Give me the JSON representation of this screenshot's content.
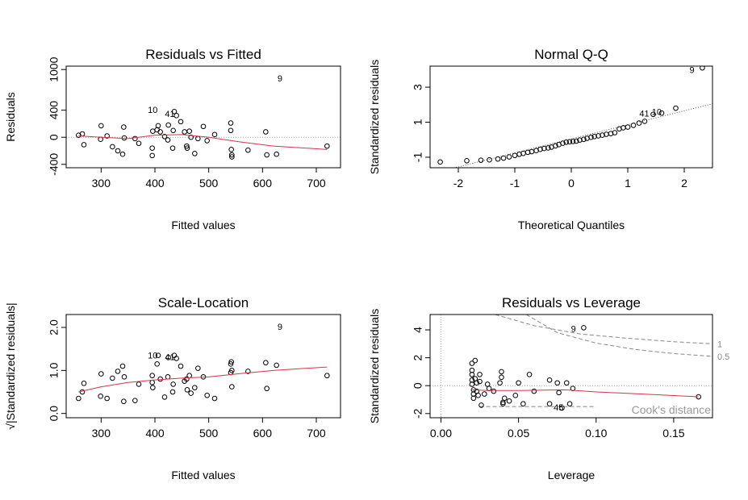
{
  "chart_data": [
    {
      "type": "scatter",
      "title": "Residuals vs Fitted",
      "xlabel": "Fitted values",
      "ylabel": "Residuals",
      "xlim": [
        235,
        745
      ],
      "ylim": [
        -450,
        1050
      ],
      "xticks": [
        300,
        400,
        500,
        600,
        700
      ],
      "yticks": [
        -400,
        0,
        400,
        1000
      ],
      "ytick_labels": [
        "-400",
        "0",
        "400",
        "1000"
      ],
      "points": [
        [
          258,
          30
        ],
        [
          265,
          50
        ],
        [
          268,
          -110
        ],
        [
          299,
          -30
        ],
        [
          300,
          170
        ],
        [
          311,
          20
        ],
        [
          321,
          -140
        ],
        [
          331,
          -200
        ],
        [
          340,
          -250
        ],
        [
          342,
          150
        ],
        [
          343,
          -10
        ],
        [
          363,
          -20
        ],
        [
          370,
          -90
        ],
        [
          395,
          -160
        ],
        [
          395,
          -270
        ],
        [
          396,
          90
        ],
        [
          404,
          110
        ],
        [
          406,
          170
        ],
        [
          410,
          80
        ],
        [
          418,
          10
        ],
        [
          424,
          -40
        ],
        [
          425,
          180
        ],
        [
          433,
          -160
        ],
        [
          434,
          100
        ],
        [
          436,
          380
        ],
        [
          440,
          320
        ],
        [
          448,
          230
        ],
        [
          455,
          80
        ],
        [
          459,
          -130
        ],
        [
          460,
          -160
        ],
        [
          464,
          90
        ],
        [
          467,
          0
        ],
        [
          474,
          -240
        ],
        [
          480,
          -20
        ],
        [
          490,
          160
        ],
        [
          497,
          -50
        ],
        [
          511,
          40
        ],
        [
          541,
          210
        ],
        [
          541,
          100
        ],
        [
          542,
          -180
        ],
        [
          543,
          -260
        ],
        [
          543,
          -290
        ],
        [
          573,
          -190
        ],
        [
          606,
          80
        ],
        [
          608,
          -260
        ],
        [
          626,
          -250
        ],
        [
          720,
          -130
        ]
      ],
      "labels": [
        {
          "text": "9",
          "x": 637,
          "y": 870
        },
        {
          "text": "10",
          "x": 405,
          "y": 410
        },
        {
          "text": "41",
          "x": 437,
          "y": 350
        }
      ],
      "smooth": [
        [
          258,
          20
        ],
        [
          300,
          0
        ],
        [
          350,
          -20
        ],
        [
          400,
          30
        ],
        [
          450,
          40
        ],
        [
          500,
          0
        ],
        [
          560,
          -70
        ],
        [
          620,
          -130
        ],
        [
          720,
          -180
        ]
      ],
      "refline": 0
    },
    {
      "type": "scatter",
      "title": "Normal Q-Q",
      "xlabel": "Theoretical Quantiles",
      "ylabel": "Standardized residuals",
      "xlim": [
        -2.5,
        2.5
      ],
      "ylim": [
        -1.6,
        4.2
      ],
      "xticks": [
        -2,
        -1,
        0,
        1,
        2
      ],
      "yticks": [
        -1,
        1,
        3
      ],
      "ytick_labels": [
        "-1",
        "1",
        "3"
      ],
      "points": [
        [
          -2.32,
          -1.27
        ],
        [
          -1.85,
          -1.2
        ],
        [
          -1.6,
          -1.17
        ],
        [
          -1.45,
          -1.15
        ],
        [
          -1.3,
          -1.1
        ],
        [
          -1.2,
          -1.05
        ],
        [
          -1.1,
          -0.98
        ],
        [
          -1.0,
          -0.9
        ],
        [
          -0.92,
          -0.83
        ],
        [
          -0.85,
          -0.78
        ],
        [
          -0.77,
          -0.72
        ],
        [
          -0.7,
          -0.68
        ],
        [
          -0.62,
          -0.62
        ],
        [
          -0.55,
          -0.55
        ],
        [
          -0.48,
          -0.5
        ],
        [
          -0.41,
          -0.47
        ],
        [
          -0.35,
          -0.42
        ],
        [
          -0.28,
          -0.35
        ],
        [
          -0.22,
          -0.28
        ],
        [
          -0.15,
          -0.2
        ],
        [
          -0.09,
          -0.14
        ],
        [
          -0.03,
          -0.12
        ],
        [
          0.03,
          -0.1
        ],
        [
          0.09,
          -0.08
        ],
        [
          0.15,
          -0.02
        ],
        [
          0.22,
          0.02
        ],
        [
          0.28,
          0.08
        ],
        [
          0.35,
          0.14
        ],
        [
          0.41,
          0.18
        ],
        [
          0.48,
          0.22
        ],
        [
          0.55,
          0.26
        ],
        [
          0.62,
          0.31
        ],
        [
          0.7,
          0.35
        ],
        [
          0.77,
          0.4
        ],
        [
          0.85,
          0.62
        ],
        [
          0.92,
          0.68
        ],
        [
          1.0,
          0.72
        ],
        [
          1.1,
          0.82
        ],
        [
          1.2,
          0.95
        ],
        [
          1.3,
          1.05
        ],
        [
          1.45,
          1.45
        ],
        [
          1.6,
          1.52
        ],
        [
          1.85,
          1.8
        ],
        [
          2.32,
          4.1
        ]
      ],
      "labels": [
        {
          "text": "9",
          "x": 2.18,
          "y": 4.0
        },
        {
          "text": "41",
          "x": 1.38,
          "y": 1.5
        },
        {
          "text": "10",
          "x": 1.6,
          "y": 1.6
        }
      ],
      "qqline": [
        [
          -2.5,
          -1.95
        ],
        [
          2.5,
          2.05
        ]
      ]
    },
    {
      "type": "scatter",
      "title": "Scale-Location",
      "xlabel": "Fitted values",
      "ylabel": "√|Standardized residuals|",
      "xlim": [
        235,
        745
      ],
      "ylim": [
        -0.1,
        2.3
      ],
      "xticks": [
        300,
        400,
        500,
        600,
        700
      ],
      "yticks": [
        0.0,
        1.0,
        2.0
      ],
      "ytick_labels": [
        "0.0",
        "1.0",
        "2.0"
      ],
      "points": [
        [
          258,
          0.35
        ],
        [
          265,
          0.5
        ],
        [
          268,
          0.7
        ],
        [
          299,
          0.4
        ],
        [
          300,
          0.92
        ],
        [
          311,
          0.35
        ],
        [
          321,
          0.82
        ],
        [
          331,
          0.98
        ],
        [
          340,
          1.1
        ],
        [
          342,
          0.28
        ],
        [
          343,
          0.85
        ],
        [
          363,
          0.3
        ],
        [
          370,
          0.68
        ],
        [
          395,
          0.88
        ],
        [
          395,
          0.72
        ],
        [
          396,
          0.6
        ],
        [
          404,
          1.15
        ],
        [
          406,
          1.35
        ],
        [
          410,
          0.8
        ],
        [
          418,
          0.38
        ],
        [
          424,
          0.85
        ],
        [
          425,
          1.3
        ],
        [
          433,
          0.5
        ],
        [
          434,
          0.68
        ],
        [
          436,
          1.35
        ],
        [
          440,
          1.28
        ],
        [
          448,
          1.1
        ],
        [
          455,
          0.75
        ],
        [
          459,
          0.8
        ],
        [
          460,
          0.55
        ],
        [
          464,
          0.88
        ],
        [
          467,
          0.47
        ],
        [
          474,
          0.6
        ],
        [
          480,
          1.05
        ],
        [
          490,
          0.85
        ],
        [
          497,
          0.42
        ],
        [
          511,
          0.35
        ],
        [
          541,
          0.95
        ],
        [
          541,
          1.15
        ],
        [
          542,
          1.2
        ],
        [
          543,
          0.62
        ],
        [
          543,
          1.0
        ],
        [
          573,
          0.98
        ],
        [
          606,
          1.18
        ],
        [
          608,
          0.58
        ],
        [
          626,
          1.12
        ],
        [
          720,
          0.88
        ]
      ],
      "labels": [
        {
          "text": "9",
          "x": 637,
          "y": 2.02
        },
        {
          "text": "10",
          "x": 405,
          "y": 1.35
        },
        {
          "text": "41",
          "x": 437,
          "y": 1.32
        }
      ],
      "smooth": [
        [
          258,
          0.5
        ],
        [
          300,
          0.62
        ],
        [
          350,
          0.72
        ],
        [
          400,
          0.78
        ],
        [
          450,
          0.82
        ],
        [
          500,
          0.85
        ],
        [
          560,
          0.93
        ],
        [
          620,
          1.0
        ],
        [
          720,
          1.08
        ]
      ]
    },
    {
      "type": "scatter",
      "title": "Residuals vs Leverage",
      "xlabel": "Leverage",
      "ylabel": "Standardized residuals",
      "xlim": [
        -0.007,
        0.175
      ],
      "ylim": [
        -2.3,
        5.1
      ],
      "xticks": [
        0.0,
        0.05,
        0.1,
        0.15
      ],
      "xtick_labels": [
        "0.00",
        "0.05",
        "0.10",
        "0.15"
      ],
      "yticks": [
        -2,
        0,
        2,
        4
      ],
      "ytick_labels": [
        "-2",
        "0",
        "2",
        "4"
      ],
      "points": [
        [
          0.02,
          1.6
        ],
        [
          0.02,
          1.1
        ],
        [
          0.02,
          0.8
        ],
        [
          0.02,
          0.4
        ],
        [
          0.02,
          0.1
        ],
        [
          0.021,
          -0.3
        ],
        [
          0.021,
          -0.6
        ],
        [
          0.021,
          -0.9
        ],
        [
          0.022,
          1.8
        ],
        [
          0.022,
          0.5
        ],
        [
          0.023,
          0.2
        ],
        [
          0.023,
          -0.4
        ],
        [
          0.024,
          -0.7
        ],
        [
          0.025,
          0.8
        ],
        [
          0.025,
          0.3
        ],
        [
          0.026,
          -1.4
        ],
        [
          0.028,
          -0.6
        ],
        [
          0.03,
          0.1
        ],
        [
          0.031,
          -0.2
        ],
        [
          0.034,
          -0.4
        ],
        [
          0.038,
          0.2
        ],
        [
          0.039,
          1.0
        ],
        [
          0.039,
          0.6
        ],
        [
          0.04,
          -1.2
        ],
        [
          0.04,
          -1.3
        ],
        [
          0.041,
          -0.9
        ],
        [
          0.044,
          -1.1
        ],
        [
          0.048,
          -0.7
        ],
        [
          0.05,
          0.2
        ],
        [
          0.053,
          -1.3
        ],
        [
          0.057,
          0.8
        ],
        [
          0.06,
          -0.4
        ],
        [
          0.07,
          0.4
        ],
        [
          0.07,
          -1.3
        ],
        [
          0.075,
          0.2
        ],
        [
          0.076,
          -0.5
        ],
        [
          0.078,
          -1.6
        ],
        [
          0.081,
          0.2
        ],
        [
          0.083,
          -1.3
        ],
        [
          0.085,
          -0.2
        ],
        [
          0.092,
          4.15
        ],
        [
          0.166,
          -0.8
        ]
      ],
      "labels": [
        {
          "text": "9",
          "x": 0.087,
          "y": 4.1
        },
        {
          "text": "45",
          "x": 0.079,
          "y": -1.55
        }
      ],
      "smooth": [
        [
          0.02,
          -0.3
        ],
        [
          0.03,
          -0.35
        ],
        [
          0.05,
          -0.35
        ],
        [
          0.08,
          -0.3
        ],
        [
          0.1,
          -0.45
        ],
        [
          0.13,
          -0.6
        ],
        [
          0.166,
          -0.8
        ]
      ],
      "cooks": [
        {
          "label": "1",
          "curve": [
            [
              0.035,
              5.1
            ],
            [
              0.06,
              4.3
            ],
            [
              0.09,
              3.7
            ],
            [
              0.12,
              3.4
            ],
            [
              0.15,
              3.15
            ],
            [
              0.175,
              3.0
            ]
          ]
        },
        {
          "label": "0.5",
          "curve": [
            [
              0.055,
              5.1
            ],
            [
              0.075,
              3.8
            ],
            [
              0.1,
              3.05
            ],
            [
              0.125,
              2.6
            ],
            [
              0.15,
              2.3
            ],
            [
              0.175,
              2.1
            ]
          ]
        }
      ],
      "cooks_lower": [
        [
          0.025,
          -1.5
        ],
        [
          0.1,
          -1.5
        ]
      ],
      "legend": {
        "text": "Cook's distance",
        "position": "bottom-right"
      }
    }
  ]
}
